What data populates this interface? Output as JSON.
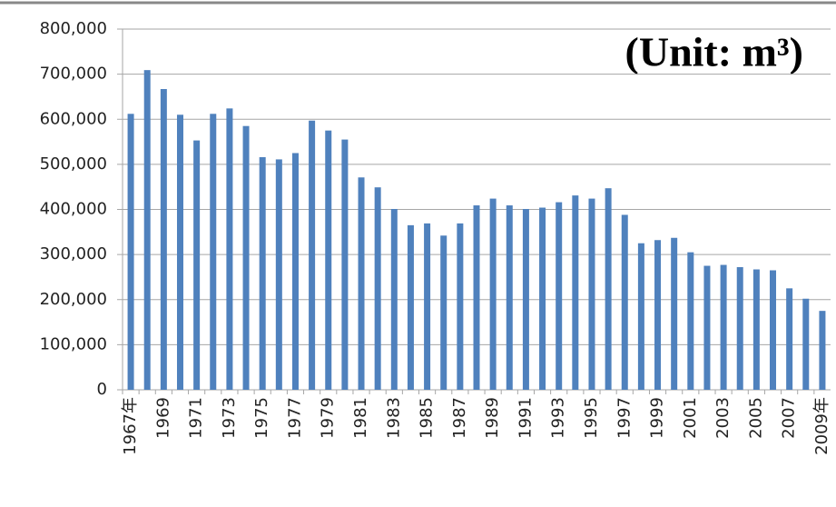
{
  "chart_data": {
    "type": "bar",
    "title": "(Unit: m³)",
    "categories": [
      "1967年",
      null,
      "1969",
      null,
      "1971",
      null,
      "1973",
      null,
      "1975",
      null,
      "1977",
      null,
      "1979",
      null,
      "1981",
      null,
      "1983",
      null,
      "1985",
      null,
      "1987",
      null,
      "1989",
      null,
      "1991",
      null,
      "1993",
      null,
      "1995",
      null,
      "1997",
      null,
      "1999",
      null,
      "2001",
      null,
      "2003",
      null,
      "2005",
      null,
      "2007",
      null,
      "2009年"
    ],
    "values": [
      612000,
      709000,
      667000,
      610000,
      553000,
      612000,
      624000,
      585000,
      516000,
      511000,
      525000,
      597000,
      575000,
      555000,
      471000,
      449000,
      401000,
      365000,
      369000,
      342000,
      369000,
      409000,
      424000,
      409000,
      401000,
      404000,
      416000,
      431000,
      424000,
      447000,
      388000,
      325000,
      332000,
      337000,
      305000,
      275000,
      277000,
      272000,
      267000,
      265000,
      225000,
      202000,
      175000
    ],
    "color": "#4f81bd",
    "ylim": [
      0,
      800000
    ],
    "yticks": [
      0,
      {
        "value": 100000,
        "label": "100,000"
      },
      {
        "value": 200000,
        "label": "200,000"
      },
      {
        "value": 300000,
        "label": "300,000"
      },
      {
        "value": 400000,
        "label": "400,000"
      },
      {
        "value": 500000,
        "label": "500,000"
      },
      {
        "value": 600000,
        "label": "600,000"
      },
      {
        "value": 700000,
        "label": "700,000"
      },
      {
        "value": 800000,
        "label": "800,000"
      }
    ],
    "grid": true
  }
}
